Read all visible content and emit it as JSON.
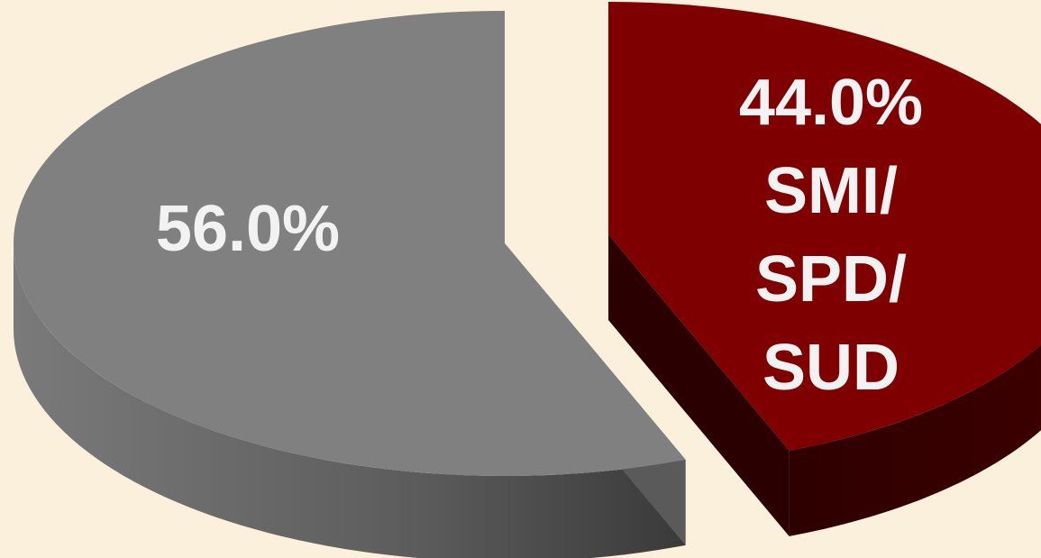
{
  "background_color": "#FAF0DC",
  "chart_data": {
    "type": "pie",
    "style": "3d-exploded",
    "slices": [
      {
        "value": 56.0,
        "label_lines": [
          "56.0%"
        ],
        "color": "#808080",
        "side_color": "#4D4D4D"
      },
      {
        "value": 44.0,
        "label_lines": [
          "44.0%",
          "SMI/",
          "SPD/",
          "SUD"
        ],
        "color": "#7F0000",
        "side_color": "#3A0000"
      }
    ],
    "legend": "none",
    "grid": false
  }
}
